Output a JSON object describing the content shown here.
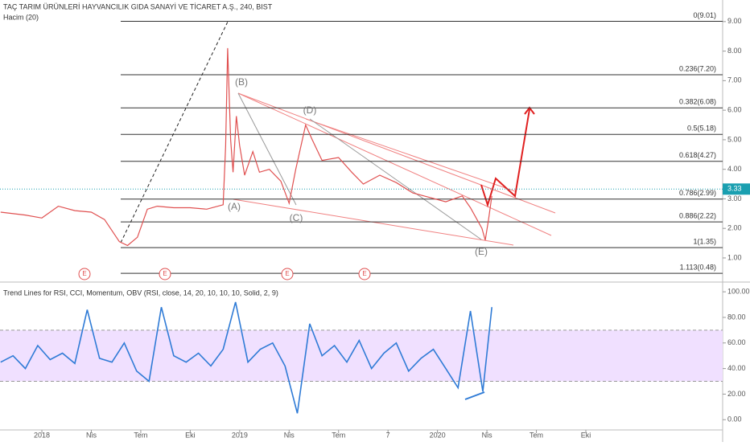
{
  "chart_data": [
    {
      "type": "line",
      "title": "TAÇ TARIM ÜRÜNLERİ HAYVANCILIK GIDA SANAYİ VE TİCARET A.Ş., 240, BIST",
      "subtitle": "Hacim (20)",
      "xlim": [
        -2.54,
        41.3
      ],
      "ylim": [
        0.21,
        9.73
      ],
      "xticks": [
        {
          "value": 0,
          "label": "2018"
        },
        {
          "value": 3,
          "label": "Nis"
        },
        {
          "value": 6,
          "label": "Tem"
        },
        {
          "value": 9,
          "label": "Eki"
        },
        {
          "value": 12,
          "label": "2019"
        },
        {
          "value": 15,
          "label": "Nis"
        },
        {
          "value": 18,
          "label": "Tem"
        },
        {
          "value": 21,
          "label": "7"
        },
        {
          "value": 24,
          "label": "2020"
        },
        {
          "value": 27,
          "label": "Nis"
        },
        {
          "value": 30,
          "label": "Tem"
        },
        {
          "value": 33,
          "label": "Eki"
        }
      ],
      "yticks": [
        {
          "value": 1,
          "label": "1.00"
        },
        {
          "value": 2,
          "label": "2.00"
        },
        {
          "value": 3,
          "label": "3.00"
        },
        {
          "value": 4,
          "label": "4.00"
        },
        {
          "value": 5,
          "label": "5.00"
        },
        {
          "value": 6,
          "label": "6.00"
        },
        {
          "value": 7,
          "label": "7.00"
        },
        {
          "value": 8,
          "label": "8.00"
        },
        {
          "value": 9,
          "label": "9.00"
        }
      ],
      "last_price": 3.33,
      "series": [
        {
          "color": "#e05050",
          "x": [
            -2.5,
            -1,
            0,
            1,
            2,
            3,
            3.8,
            4.7,
            5.2,
            5.8,
            6.4,
            7,
            8,
            9,
            10,
            11,
            11.15,
            11.27,
            11.45,
            11.6,
            11.8,
            12,
            12.3,
            12.8,
            13.2,
            13.8,
            14.5,
            15,
            15.4,
            16,
            16.4,
            17,
            18,
            18.8,
            19.5,
            20.5,
            21.5,
            22.5,
            23.5,
            24.5,
            25.5,
            26,
            26.7,
            26.9,
            27.1,
            27.3
          ],
          "values": [
            2.55,
            2.45,
            2.35,
            2.75,
            2.6,
            2.55,
            2.3,
            1.55,
            1.42,
            1.7,
            2.65,
            2.75,
            2.7,
            2.7,
            2.65,
            2.8,
            4.8,
            8.1,
            5.0,
            3.9,
            5.8,
            4.8,
            3.8,
            4.6,
            3.9,
            4.0,
            3.6,
            2.85,
            4.0,
            5.5,
            5.0,
            4.3,
            4.4,
            3.9,
            3.5,
            3.8,
            3.55,
            3.2,
            3.05,
            2.9,
            3.1,
            2.7,
            2.0,
            1.6,
            2.3,
            3.1
          ]
        }
      ],
      "fib_levels": [
        {
          "value": 9.01,
          "label": "0(9.01)"
        },
        {
          "value": 7.2,
          "label": "0.236(7.20)"
        },
        {
          "value": 6.08,
          "label": "0.382(6.08)"
        },
        {
          "value": 5.18,
          "label": "0.5(5.18)"
        },
        {
          "value": 4.27,
          "label": "0.618(4.27)"
        },
        {
          "value": 2.99,
          "label": "0.786(2.99)"
        },
        {
          "value": 2.22,
          "label": "0.886(2.22)"
        },
        {
          "value": 1.35,
          "label": "1(1.35)"
        },
        {
          "value": 0.48,
          "label": "1.113(0.48)"
        }
      ],
      "annotations": [
        "(A)",
        "(B)",
        "(C)",
        "(D)",
        "(E)"
      ],
      "events": [
        "E",
        "E",
        "E",
        "E"
      ]
    },
    {
      "type": "line",
      "title": "Trend Lines for RSI, CCI, Momentum, OBV (RSI, close, 14, 20, 10, 10, 10, Solid, 2, 9)",
      "ylim": [
        -8,
        107
      ],
      "band": [
        30,
        70
      ],
      "yticks": [
        {
          "value": 0,
          "label": "0.00"
        },
        {
          "value": 20,
          "label": "20.00"
        },
        {
          "value": 40,
          "label": "40.00"
        },
        {
          "value": 60,
          "label": "60.00"
        },
        {
          "value": 80,
          "label": "80.00"
        },
        {
          "value": 100,
          "label": "100.00"
        }
      ],
      "series": [
        {
          "color": "#2f7bd6",
          "x": [
            -2.5,
            -1.75,
            -1,
            -0.25,
            0.5,
            1.25,
            2,
            2.75,
            3.5,
            4.25,
            5,
            5.75,
            6.5,
            7.25,
            8,
            8.75,
            9.5,
            10.25,
            11,
            11.75,
            12.5,
            13.25,
            14,
            14.75,
            15.5,
            16.25,
            17,
            17.75,
            18.5,
            19.25,
            20,
            20.75,
            21.5,
            22.25,
            23,
            23.75,
            24.5,
            25.25,
            26,
            26.75,
            27.3
          ],
          "values": [
            45,
            50,
            40,
            58,
            47,
            52,
            44,
            86,
            48,
            45,
            60,
            38,
            30,
            88,
            50,
            45,
            52,
            42,
            55,
            92,
            45,
            55,
            60,
            42,
            5,
            75,
            50,
            58,
            45,
            62,
            40,
            52,
            60,
            38,
            48,
            55,
            40,
            25,
            85,
            22,
            88
          ]
        }
      ]
    }
  ]
}
